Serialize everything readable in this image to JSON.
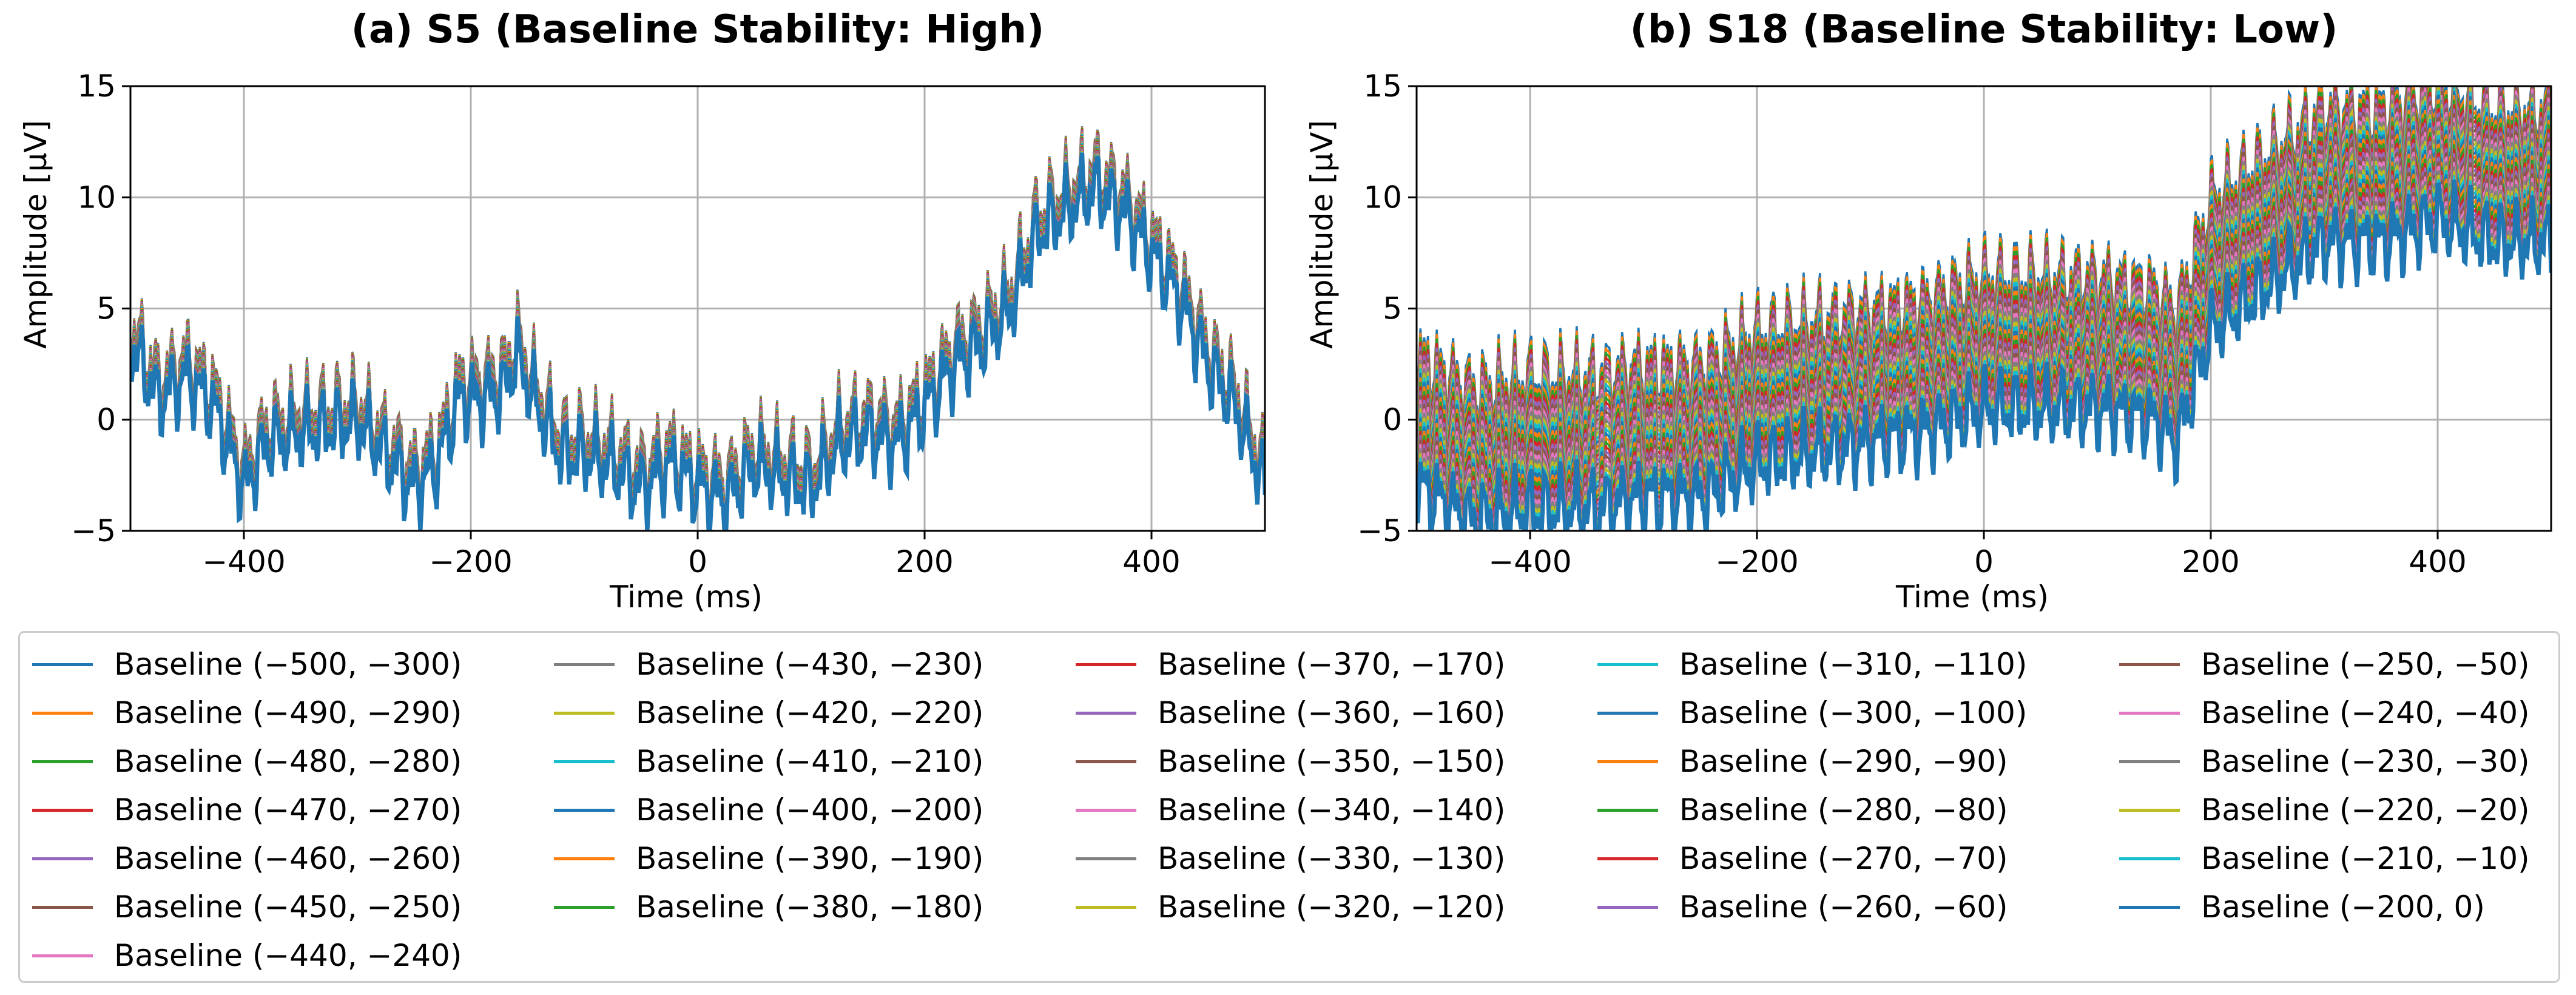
{
  "colors": [
    "#1f77b4",
    "#ff7f0e",
    "#2ca02c",
    "#d62728",
    "#9467bd",
    "#8c564b",
    "#e377c2",
    "#7f7f7f",
    "#bcbd22",
    "#17becf"
  ],
  "legend": [
    "Baseline (−500, −300)",
    "Baseline (−490, −290)",
    "Baseline (−480, −280)",
    "Baseline (−470, −270)",
    "Baseline (−460, −260)",
    "Baseline (−450, −250)",
    "Baseline (−440, −240)",
    "Baseline (−430, −230)",
    "Baseline (−420, −220)",
    "Baseline (−410, −210)",
    "Baseline (−400, −200)",
    "Baseline (−390, −190)",
    "Baseline (−380, −180)",
    "Baseline (−370, −170)",
    "Baseline (−360, −160)",
    "Baseline (−350, −150)",
    "Baseline (−340, −140)",
    "Baseline (−330, −130)",
    "Baseline (−320, −120)",
    "Baseline (−310, −110)",
    "Baseline (−300, −100)",
    "Baseline (−290, −90)",
    "Baseline (−280, −80)",
    "Baseline (−270, −70)",
    "Baseline (−260, −60)",
    "Baseline (−250, −50)",
    "Baseline (−240, −40)",
    "Baseline (−230, −30)",
    "Baseline (−220, −20)",
    "Baseline (−210, −10)",
    "Baseline (−200, 0)"
  ],
  "chart_data": [
    {
      "type": "line",
      "title": "(a) S5 (Baseline Stability: High)",
      "xlabel": "Time (ms)",
      "ylabel": "Amplitude [μV]",
      "xlim": [
        -500,
        500
      ],
      "ylim": [
        -5,
        15
      ],
      "xticks": [
        -400,
        -200,
        0,
        200,
        400
      ],
      "xtick_labels": [
        "−400",
        "−200",
        "0",
        "200",
        "400"
      ],
      "yticks": [
        -5,
        0,
        5,
        10,
        15
      ],
      "ytick_labels": [
        "−5",
        "0",
        "5",
        "10",
        "15"
      ],
      "grid": true,
      "series_spread": 0.6,
      "envelope": {
        "x": [
          -500,
          -475,
          -450,
          -425,
          -400,
          -380,
          -350,
          -300,
          -250,
          -230,
          -210,
          -190,
          -170,
          -160,
          -140,
          -120,
          -100,
          -75,
          -50,
          -25,
          0,
          25,
          50,
          75,
          100,
          125,
          150,
          175,
          200,
          225,
          250,
          275,
          300,
          325,
          350,
          375,
          400,
          425,
          450,
          475,
          500
        ],
        "y": [
          4,
          1.5,
          2.5,
          1,
          -2.5,
          -0.5,
          0,
          0.5,
          -2.5,
          -1.5,
          1.5,
          1.5,
          2,
          3.5,
          1,
          -1,
          -1,
          -1.5,
          -2.5,
          -1.5,
          -2.5,
          -3,
          -1.5,
          -2,
          -2.5,
          -0.5,
          0,
          -0.5,
          1,
          3,
          4,
          5.5,
          9,
          10,
          11,
          10,
          8,
          6,
          3,
          1,
          -2.5
        ]
      }
    },
    {
      "type": "line",
      "title": "(b) S18 (Baseline Stability: Low)",
      "xlabel": "Time (ms)",
      "ylabel": "Amplitude [μV]",
      "xlim": [
        -500,
        500
      ],
      "ylim": [
        -5,
        15
      ],
      "xticks": [
        -400,
        -200,
        0,
        200,
        400
      ],
      "xtick_labels": [
        "−400",
        "−200",
        "0",
        "200",
        "400"
      ],
      "yticks": [
        -5,
        0,
        5,
        10,
        15
      ],
      "ytick_labels": [
        "−5",
        "0",
        "5",
        "10",
        "15"
      ],
      "grid": true,
      "series_spread": 3.0,
      "envelope": {
        "x": [
          -500,
          -450,
          -400,
          -350,
          -300,
          -250,
          -200,
          -150,
          -100,
          -50,
          0,
          50,
          100,
          150,
          170,
          200,
          250,
          300,
          350,
          400,
          450,
          500
        ],
        "y": [
          0,
          -1.5,
          -1,
          -1,
          -0.5,
          -0.5,
          1,
          1.5,
          2,
          2.5,
          3.5,
          3.5,
          3.5,
          3,
          2,
          7,
          9,
          11,
          11,
          12,
          11,
          11
        ]
      }
    }
  ]
}
